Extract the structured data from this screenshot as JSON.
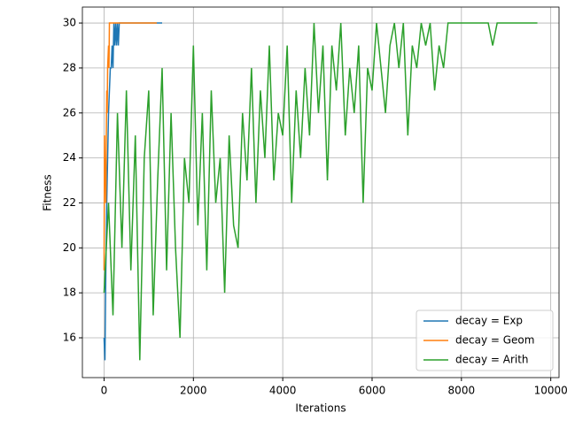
{
  "chart_data": {
    "type": "line",
    "xlabel": "Iterations",
    "ylabel": "Fitness",
    "xlim": [
      -485,
      10185
    ],
    "ylim": [
      14.23,
      30.71
    ],
    "xticks": [
      0,
      2000,
      4000,
      6000,
      8000,
      10000
    ],
    "yticks": [
      16,
      18,
      20,
      22,
      24,
      26,
      28,
      30
    ],
    "grid": true,
    "legend": "lower right",
    "series": [
      {
        "name": "decay = Exp",
        "color": "#1f77b4",
        "x": [
          0,
          20,
          40,
          60,
          80,
          100,
          120,
          140,
          160,
          180,
          200,
          220,
          240,
          260,
          280,
          300,
          320,
          340,
          1300
        ],
        "values": [
          16,
          15,
          19,
          22,
          24,
          26,
          27,
          28,
          28,
          29,
          28,
          30,
          29,
          30,
          29,
          30,
          29,
          30,
          30
        ]
      },
      {
        "name": "decay = Geom",
        "color": "#ff7f0e",
        "x": [
          0,
          10,
          20,
          30,
          40,
          50,
          60,
          70,
          80,
          100,
          110,
          120,
          130,
          1180
        ],
        "values": [
          19,
          25,
          23,
          24,
          22,
          25,
          27,
          26,
          28,
          29,
          28,
          30,
          30,
          30
        ]
      },
      {
        "name": "decay = Arith",
        "color": "#2ca02c",
        "x": [
          0,
          100,
          200,
          300,
          400,
          500,
          600,
          700,
          800,
          900,
          1000,
          1100,
          1200,
          1300,
          1400,
          1500,
          1600,
          1700,
          1800,
          1900,
          2000,
          2100,
          2200,
          2300,
          2400,
          2500,
          2600,
          2700,
          2800,
          2900,
          3000,
          3100,
          3200,
          3300,
          3400,
          3500,
          3600,
          3700,
          3800,
          3900,
          4000,
          4100,
          4200,
          4300,
          4400,
          4500,
          4600,
          4700,
          4800,
          4900,
          5000,
          5100,
          5200,
          5300,
          5400,
          5500,
          5600,
          5700,
          5800,
          5900,
          6000,
          6100,
          6200,
          6300,
          6400,
          6500,
          6600,
          6700,
          6800,
          6900,
          7000,
          7100,
          7200,
          7300,
          7400,
          7500,
          7600,
          7700,
          7800,
          7900,
          8000,
          8100,
          8200,
          8300,
          8400,
          8500,
          8600,
          8700,
          8800,
          8900,
          9000,
          9100,
          9200,
          9300,
          9400,
          9500,
          9600,
          9700
        ],
        "values": [
          18,
          22,
          17,
          26,
          20,
          27,
          19,
          25,
          15,
          24,
          27,
          17,
          23,
          28,
          19,
          26,
          20,
          16,
          24,
          22,
          29,
          21,
          26,
          19,
          27,
          22,
          24,
          18,
          25,
          21,
          20,
          26,
          23,
          28,
          22,
          27,
          24,
          29,
          23,
          26,
          25,
          29,
          22,
          27,
          24,
          28,
          25,
          30,
          26,
          29,
          23,
          29,
          27,
          30,
          25,
          28,
          26,
          29,
          22,
          28,
          27,
          30,
          28,
          26,
          29,
          30,
          28,
          30,
          25,
          29,
          28,
          30,
          29,
          30,
          27,
          29,
          28,
          30,
          30,
          30,
          30,
          30,
          30,
          30,
          30,
          30,
          30,
          29,
          30,
          30,
          30,
          30,
          30,
          30,
          30,
          30,
          30,
          30
        ]
      }
    ]
  }
}
